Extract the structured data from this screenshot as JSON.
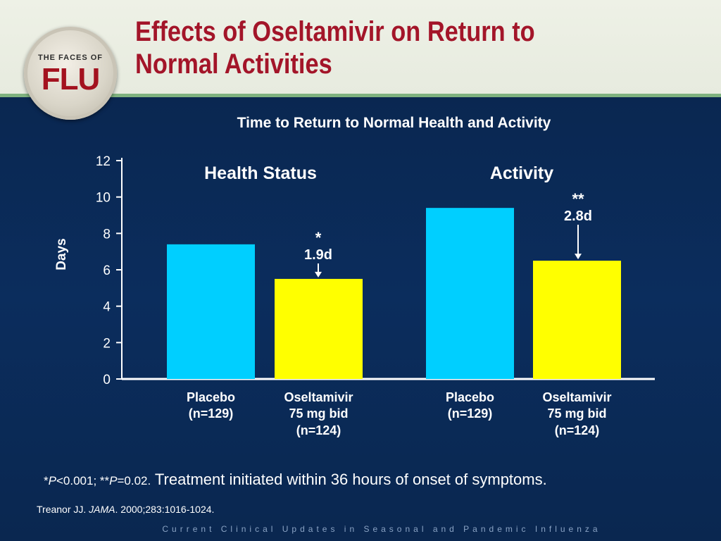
{
  "header": {
    "title_line1": "Effects of Oseltamivir on Return to",
    "title_line2": "Normal Activities",
    "logo_top": "THE FACES OF",
    "logo_main": "FLU"
  },
  "colors": {
    "placebo": "#00cfff",
    "oseltamivir": "#ffff00",
    "title": "#a31529",
    "background": "#0b2752"
  },
  "chart_data": {
    "type": "bar",
    "title": "Time to Return to Normal Health and Activity",
    "ylabel": "Days",
    "ylim": [
      0,
      12
    ],
    "yticks": [
      "0",
      "2",
      "4",
      "6",
      "8",
      "10",
      "12"
    ],
    "grid": false,
    "groups": [
      {
        "name": "Health Status",
        "bars": [
          {
            "label_line1": "Placebo",
            "label_line2": "(n=129)",
            "label_line3": "",
            "series": "Placebo",
            "value": 7.4
          },
          {
            "label_line1": "Oseltamivir",
            "label_line2": "75 mg bid",
            "label_line3": "(n=124)",
            "series": "Oseltamivir",
            "value": 5.5
          }
        ],
        "annotation": {
          "significance": "*",
          "difference": "1.9d"
        }
      },
      {
        "name": "Activity",
        "bars": [
          {
            "label_line1": "Placebo",
            "label_line2": "(n=129)",
            "label_line3": "",
            "series": "Placebo",
            "value": 9.4
          },
          {
            "label_line1": "Oseltamivir",
            "label_line2": "75 mg bid",
            "label_line3": "(n=124)",
            "series": "Oseltamivir",
            "value": 6.5
          }
        ],
        "annotation": {
          "significance": "**",
          "difference": "2.8d"
        }
      }
    ]
  },
  "footnote": {
    "p1_star": "*",
    "p1_italic": "P",
    "p1_rest": "<0.001; **",
    "p2_italic": "P",
    "p2_rest": "=0.02.",
    "text": " Treatment initiated within 36 hours of onset of symptoms."
  },
  "citation": {
    "author": "Treanor JJ. ",
    "journal": "JAMA",
    "rest": ". 2000;283:1016-1024."
  },
  "bottom_band": "Current Clinical Updates in Seasonal and Pandemic Influenza"
}
